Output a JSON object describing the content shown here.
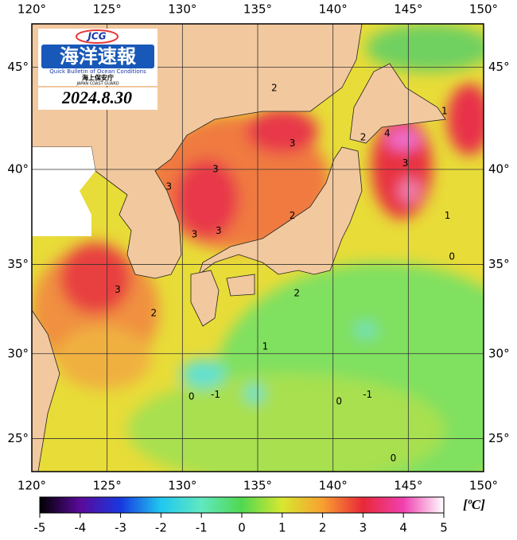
{
  "map": {
    "lonlim": [
      120,
      150
    ],
    "latlim": [
      23,
      47
    ],
    "lon_ticks": [
      {
        "value": 120,
        "label": "120°"
      },
      {
        "value": 125,
        "label": "125°"
      },
      {
        "value": 130,
        "label": "130°"
      },
      {
        "value": 135,
        "label": "135°"
      },
      {
        "value": 140,
        "label": "140°"
      },
      {
        "value": 145,
        "label": "145°"
      },
      {
        "value": 150,
        "label": "150°"
      }
    ],
    "lat_ticks": [
      {
        "value": 25,
        "label": "25°"
      },
      {
        "value": 30,
        "label": "30°"
      },
      {
        "value": 35,
        "label": "35°"
      },
      {
        "value": 40,
        "label": "40°"
      },
      {
        "value": 45,
        "label": "45°"
      }
    ],
    "contour_labels": [
      {
        "value": 2,
        "lon": 136.1,
        "lat": 44.0
      },
      {
        "value": 3,
        "lon": 137.3,
        "lat": 41.3
      },
      {
        "value": 3,
        "lon": 132.2,
        "lat": 40.0
      },
      {
        "value": 3,
        "lon": 129.1,
        "lat": 39.1
      },
      {
        "value": 3,
        "lon": 130.8,
        "lat": 36.6
      },
      {
        "value": 3,
        "lon": 132.4,
        "lat": 36.8
      },
      {
        "value": 2,
        "lon": 137.3,
        "lat": 37.6
      },
      {
        "value": 2,
        "lon": 142.0,
        "lat": 41.6
      },
      {
        "value": 4,
        "lon": 143.6,
        "lat": 41.8
      },
      {
        "value": 3,
        "lon": 144.8,
        "lat": 40.3
      },
      {
        "value": 1,
        "lon": 147.4,
        "lat": 42.9
      },
      {
        "value": 1,
        "lon": 147.6,
        "lat": 37.6
      },
      {
        "value": 0,
        "lon": 147.9,
        "lat": 35.4
      },
      {
        "value": 3,
        "lon": 125.7,
        "lat": 33.6
      },
      {
        "value": 2,
        "lon": 128.1,
        "lat": 32.3
      },
      {
        "value": 2,
        "lon": 137.6,
        "lat": 33.4
      },
      {
        "value": 1,
        "lon": 135.5,
        "lat": 30.4
      },
      {
        "value": 0,
        "lon": 130.6,
        "lat": 27.5
      },
      {
        "value": -1,
        "lon": 132.2,
        "lat": 27.6
      },
      {
        "value": 0,
        "lon": 140.4,
        "lat": 27.2
      },
      {
        "value": -1,
        "lon": 142.3,
        "lat": 27.6
      },
      {
        "value": 0,
        "lon": 144.0,
        "lat": 23.8
      }
    ]
  },
  "logo": {
    "badge": "JCG",
    "title": "海洋速報",
    "subtitle": "Quick Bulletin of Ocean Conditions",
    "agency": "海上保安庁",
    "agency_en": "JAPAN COAST GUARD"
  },
  "date": "2024.8.30",
  "colorbar": {
    "lim": [
      -5,
      5
    ],
    "ticks": [
      -5,
      -4,
      -3,
      -2,
      -1,
      0,
      1,
      2,
      3,
      4,
      5
    ],
    "unit": "[ºC]"
  }
}
